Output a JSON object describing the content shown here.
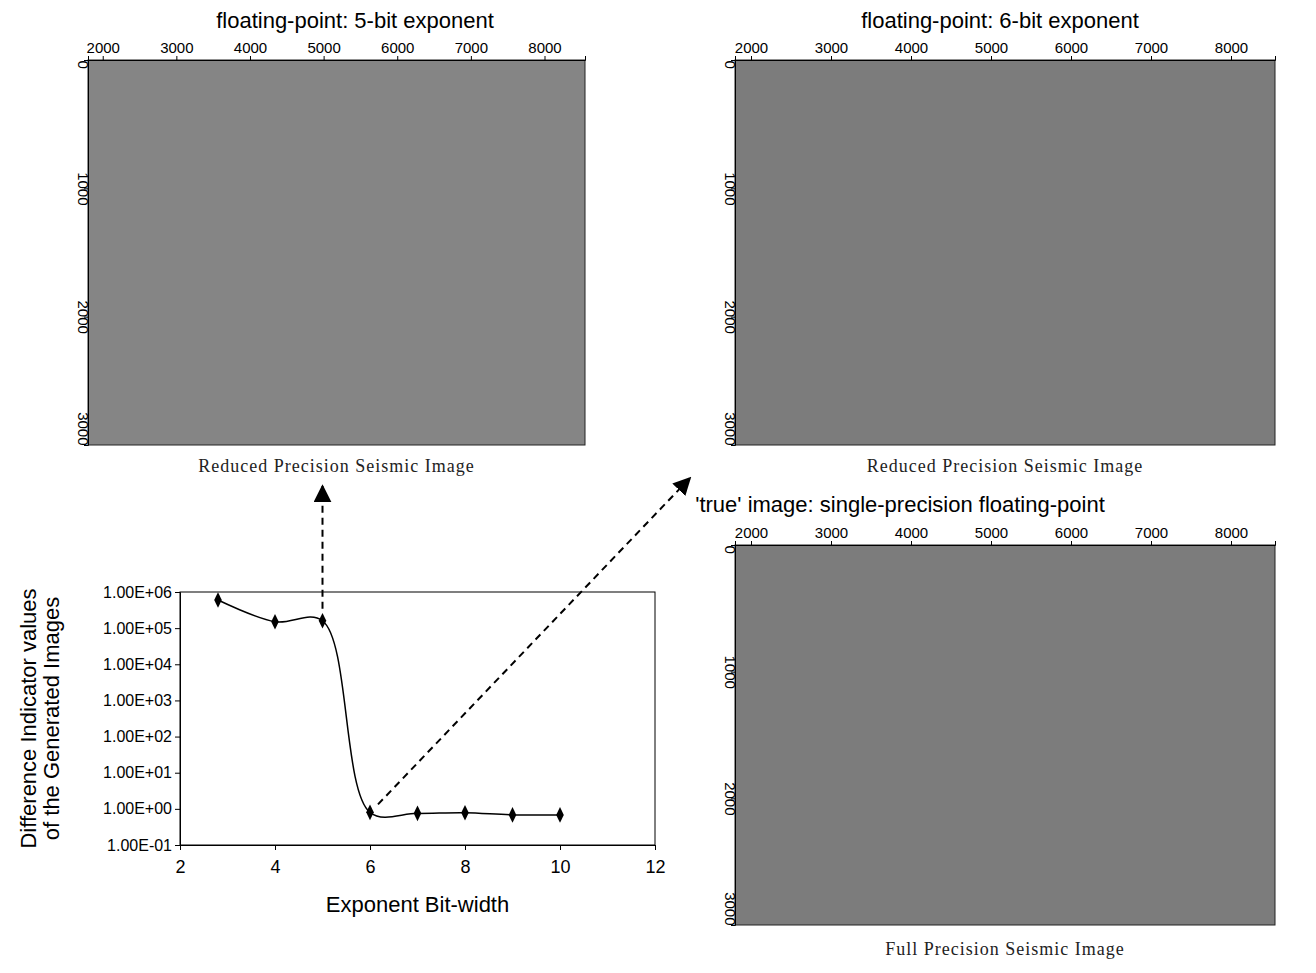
{
  "chart_data": [
    {
      "type": "image",
      "title": "floating-point: 5-bit exponent",
      "xlabel": "Reduced Precision Seismic Image",
      "xlim": [
        1800,
        8550
      ],
      "xticks": [
        2000,
        3000,
        4000,
        5000,
        6000,
        7000,
        8000
      ],
      "ylim": [
        0,
        3000
      ],
      "yticks": [
        0,
        1000,
        2000,
        3000
      ]
    },
    {
      "type": "image",
      "title": "floating-point: 6-bit exponent",
      "xlabel": "Reduced Precision Seismic Image",
      "xlim": [
        1800,
        8550
      ],
      "xticks": [
        2000,
        3000,
        4000,
        5000,
        6000,
        7000,
        8000
      ],
      "ylim": [
        0,
        3000
      ],
      "yticks": [
        0,
        1000,
        2000,
        3000
      ]
    },
    {
      "type": "image",
      "title": "'true' image: single-precision floating-point",
      "xlabel": "Full Precision Seismic Image",
      "xlim": [
        1800,
        8550
      ],
      "xticks": [
        2000,
        3000,
        4000,
        5000,
        6000,
        7000,
        8000
      ],
      "ylim": [
        0,
        3000
      ],
      "yticks": [
        0,
        1000,
        2000,
        3000
      ]
    },
    {
      "type": "line",
      "xlabel": "Exponent Bit-width",
      "ylabel": "Difference Indicator values of the Generated Images",
      "log": "y",
      "x": [
        2.8,
        4,
        5,
        6,
        7,
        8,
        9,
        10
      ],
      "series": [
        {
          "color": "#000000",
          "marker": "diamond",
          "values": [
            600000,
            150000,
            160000,
            0.8,
            0.75,
            0.78,
            0.68,
            0.68
          ]
        }
      ],
      "xlim": [
        2,
        12
      ],
      "xticks": [
        2,
        4,
        6,
        8,
        10,
        12
      ],
      "ylim": [
        0.1,
        1000000
      ],
      "yticks": [
        {
          "value": 0.1,
          "label": "1.00E-01"
        },
        {
          "value": 1,
          "label": "1.00E+00"
        },
        {
          "value": 10,
          "label": "1.00E+01"
        },
        {
          "value": 100,
          "label": "1.00E+02"
        },
        {
          "value": 1000,
          "label": "1.00E+03"
        },
        {
          "value": 10000,
          "label": "1.00E+04"
        },
        {
          "value": 100000,
          "label": "1.00E+05"
        },
        {
          "value": 1000000,
          "label": "1.00E+06"
        }
      ]
    }
  ]
}
